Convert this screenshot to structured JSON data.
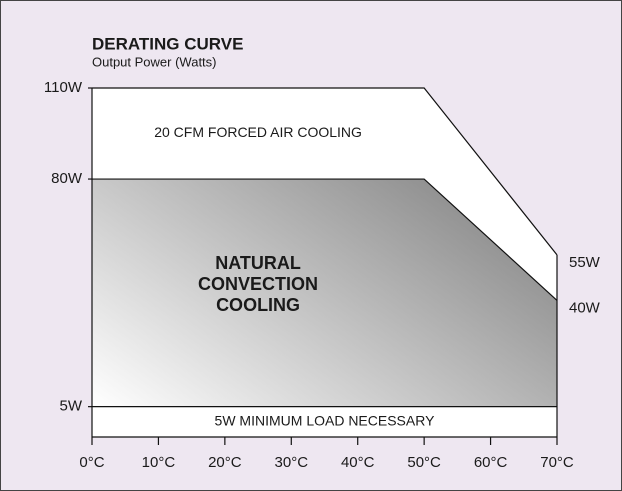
{
  "chart_data": {
    "type": "area",
    "title": "DERATING CURVE",
    "subtitle": "Output Power (Watts)",
    "x": [
      0,
      50,
      70
    ],
    "series": [
      {
        "name": "20 CFM FORCED AIR COOLING",
        "color": "#ffffff",
        "values": [
          110,
          110,
          55
        ],
        "value_labels": [
          null,
          null,
          "55W"
        ]
      },
      {
        "name": "NATURAL CONVECTION COOLING",
        "color": "#8c8c8c",
        "values": [
          80,
          80,
          40
        ],
        "value_labels": [
          null,
          null,
          "40W"
        ]
      }
    ],
    "annotations": [
      {
        "text": "5W MINIMUM LOAD NECESSARY",
        "y": 5
      }
    ],
    "xlim": [
      0,
      70
    ],
    "xticks": [
      {
        "value": 0,
        "label": "0°C"
      },
      {
        "value": 10,
        "label": "10°C"
      },
      {
        "value": 20,
        "label": "20°C"
      },
      {
        "value": 30,
        "label": "30°C"
      },
      {
        "value": 40,
        "label": "40°C"
      },
      {
        "value": 50,
        "label": "50°C"
      },
      {
        "value": 60,
        "label": "60°C"
      },
      {
        "value": 70,
        "label": "70°C"
      }
    ],
    "ylim": [
      -5,
      110
    ],
    "yticks": [
      {
        "value": 110,
        "label": "110W"
      },
      {
        "value": 80,
        "label": "80W"
      },
      {
        "value": 5,
        "label": "5W"
      }
    ]
  }
}
